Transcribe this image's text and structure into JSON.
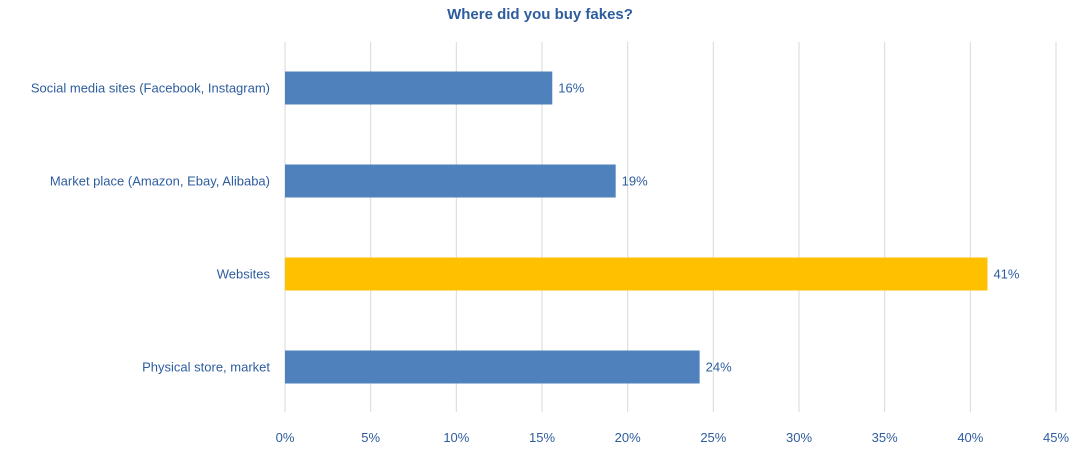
{
  "chart_data": {
    "type": "bar",
    "orientation": "horizontal",
    "title": "Where did you buy fakes?",
    "categories": [
      "Social media sites (Facebook, Instagram)",
      "Market place (Amazon, Ebay, Alibaba)",
      "Websites",
      "Physical store, market"
    ],
    "values": [
      15.6,
      19.3,
      41.0,
      24.2
    ],
    "data_labels": [
      "16%",
      "19%",
      "41%",
      "24%"
    ],
    "bar_colors": [
      "#4f81bd",
      "#4f81bd",
      "#ffc000",
      "#4f81bd"
    ],
    "xlim": [
      0,
      45
    ],
    "x_ticks": [
      "0%",
      "5%",
      "10%",
      "15%",
      "20%",
      "25%",
      "30%",
      "35%",
      "40%",
      "45%"
    ],
    "grid": "vertical",
    "legend": "none",
    "text_color": "#2e5d9e"
  }
}
